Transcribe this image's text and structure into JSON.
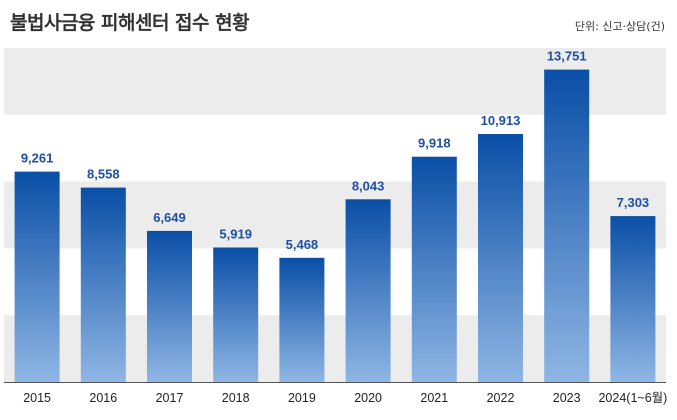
{
  "chart_data": {
    "type": "bar",
    "title": "불법사금융 피해센터 접수 현황",
    "unit_note": "단위: 신고·상담(건)",
    "categories": [
      "2015",
      "2016",
      "2017",
      "2018",
      "2019",
      "2020",
      "2021",
      "2022",
      "2023",
      "2024(1~6월)"
    ],
    "values": [
      9261,
      8558,
      6649,
      5919,
      5468,
      8043,
      9918,
      10913,
      13751,
      7303
    ],
    "value_labels": [
      "9,261",
      "8,558",
      "6,649",
      "5,919",
      "5,468",
      "8,043",
      "9,918",
      "10,913",
      "13,751",
      "7,303"
    ],
    "ylim": [
      0,
      14700
    ],
    "xlabel": "",
    "ylabel": "",
    "grid": "alternating horizontal bands",
    "colors": {
      "bar_top": "#0a4ea6",
      "bar_bottom": "#8fb6e4",
      "band": "#ececec",
      "label": "#1e4fa3",
      "axis": "#555555"
    }
  }
}
